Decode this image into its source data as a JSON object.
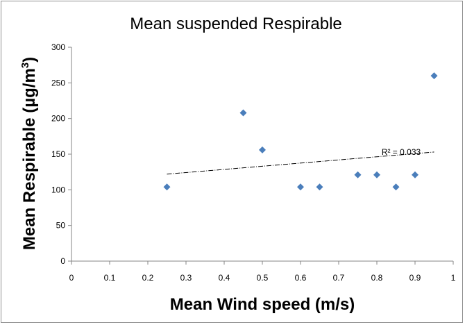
{
  "chart_data": {
    "type": "scatter",
    "title": "Mean suspended Respirable",
    "xlabel": "Mean Wind speed (m/s)",
    "ylabel_main": "Mean Respirable (µg/m",
    "ylabel_sup": "3",
    "ylabel_close": ")",
    "xlim": [
      0,
      1
    ],
    "ylim": [
      0,
      300
    ],
    "x_ticks": [
      0,
      0.1,
      0.2,
      0.3,
      0.4,
      0.5,
      0.6,
      0.7,
      0.8,
      0.9,
      1
    ],
    "x_tick_labels": [
      "0",
      "0.1",
      "0.2",
      "0.3",
      "0.4",
      "0.5",
      "0.6",
      "0.7",
      "0.8",
      "0.9",
      "1"
    ],
    "y_ticks": [
      0,
      50,
      100,
      150,
      200,
      250,
      300
    ],
    "y_tick_labels": [
      "0",
      "50",
      "100",
      "150",
      "200",
      "250",
      "300"
    ],
    "points": [
      {
        "x": 0.25,
        "y": 104
      },
      {
        "x": 0.45,
        "y": 208
      },
      {
        "x": 0.5,
        "y": 156
      },
      {
        "x": 0.6,
        "y": 104
      },
      {
        "x": 0.65,
        "y": 104
      },
      {
        "x": 0.75,
        "y": 121
      },
      {
        "x": 0.8,
        "y": 121
      },
      {
        "x": 0.85,
        "y": 104
      },
      {
        "x": 0.9,
        "y": 121
      },
      {
        "x": 0.95,
        "y": 260
      }
    ],
    "trendline": {
      "x": [
        0.25,
        0.95
      ],
      "y": [
        122,
        153
      ]
    },
    "annotation": "R² = 0.033",
    "marker_color": "#4a7ebb",
    "grid": false
  }
}
